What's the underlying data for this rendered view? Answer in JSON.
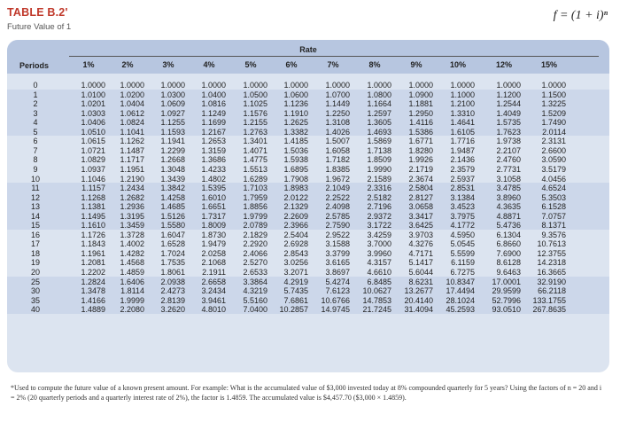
{
  "header": {
    "title": "TABLE B.2'",
    "subtitle": "Future Value of 1",
    "formula": "f = (1 + i)ⁿ"
  },
  "table": {
    "rate_label": "Rate",
    "periods_label": "Periods",
    "rates": [
      "1%",
      "2%",
      "3%",
      "4%",
      "5%",
      "6%",
      "7%",
      "8%",
      "9%",
      "10%",
      "12%",
      "15%"
    ],
    "rows": [
      {
        "p": "0",
        "v": [
          "1.0000",
          "1.0000",
          "1.0000",
          "1.0000",
          "1.0000",
          "1.0000",
          "1.0000",
          "1.0000",
          "1.0000",
          "1.0000",
          "1.0000",
          "1.0000"
        ]
      },
      {
        "p": "1",
        "v": [
          "1.0100",
          "1.0200",
          "1.0300",
          "1.0400",
          "1.0500",
          "1.0600",
          "1.0700",
          "1.0800",
          "1.0900",
          "1.1000",
          "1.1200",
          "1.1500"
        ]
      },
      {
        "p": "2",
        "v": [
          "1.0201",
          "1.0404",
          "1.0609",
          "1.0816",
          "1.1025",
          "1.1236",
          "1.1449",
          "1.1664",
          "1.1881",
          "1.2100",
          "1.2544",
          "1.3225"
        ]
      },
      {
        "p": "3",
        "v": [
          "1.0303",
          "1.0612",
          "1.0927",
          "1.1249",
          "1.1576",
          "1.1910",
          "1.2250",
          "1.2597",
          "1.2950",
          "1.3310",
          "1.4049",
          "1.5209"
        ]
      },
      {
        "p": "4",
        "v": [
          "1.0406",
          "1.0824",
          "1.1255",
          "1.1699",
          "1.2155",
          "1.2625",
          "1.3108",
          "1.3605",
          "1.4116",
          "1.4641",
          "1.5735",
          "1.7490"
        ]
      },
      {
        "p": "5",
        "v": [
          "1.0510",
          "1.1041",
          "1.1593",
          "1.2167",
          "1.2763",
          "1.3382",
          "1.4026",
          "1.4693",
          "1.5386",
          "1.6105",
          "1.7623",
          "2.0114"
        ]
      },
      {
        "p": "6",
        "v": [
          "1.0615",
          "1.1262",
          "1.1941",
          "1.2653",
          "1.3401",
          "1.4185",
          "1.5007",
          "1.5869",
          "1.6771",
          "1.7716",
          "1.9738",
          "2.3131"
        ]
      },
      {
        "p": "7",
        "v": [
          "1.0721",
          "1.1487",
          "1.2299",
          "1.3159",
          "1.4071",
          "1.5036",
          "1.6058",
          "1.7138",
          "1.8280",
          "1.9487",
          "2.2107",
          "2.6600"
        ]
      },
      {
        "p": "8",
        "v": [
          "1.0829",
          "1.1717",
          "1.2668",
          "1.3686",
          "1.4775",
          "1.5938",
          "1.7182",
          "1.8509",
          "1.9926",
          "2.1436",
          "2.4760",
          "3.0590"
        ]
      },
      {
        "p": "9",
        "v": [
          "1.0937",
          "1.1951",
          "1.3048",
          "1.4233",
          "1.5513",
          "1.6895",
          "1.8385",
          "1.9990",
          "2.1719",
          "2.3579",
          "2.7731",
          "3.5179"
        ]
      },
      {
        "p": "10",
        "v": [
          "1.1046",
          "1.2190",
          "1.3439",
          "1.4802",
          "1.6289",
          "1.7908",
          "1.9672",
          "2.1589",
          "2.3674",
          "2.5937",
          "3.1058",
          "4.0456"
        ]
      },
      {
        "p": "11",
        "v": [
          "1.1157",
          "1.2434",
          "1.3842",
          "1.5395",
          "1.7103",
          "1.8983",
          "2.1049",
          "2.3316",
          "2.5804",
          "2.8531",
          "3.4785",
          "4.6524"
        ]
      },
      {
        "p": "12",
        "v": [
          "1.1268",
          "1.2682",
          "1.4258",
          "1.6010",
          "1.7959",
          "2.0122",
          "2.2522",
          "2.5182",
          "2.8127",
          "3.1384",
          "3.8960",
          "5.3503"
        ]
      },
      {
        "p": "13",
        "v": [
          "1.1381",
          "1.2936",
          "1.4685",
          "1.6651",
          "1.8856",
          "2.1329",
          "2.4098",
          "2.7196",
          "3.0658",
          "3.4523",
          "4.3635",
          "6.1528"
        ]
      },
      {
        "p": "14",
        "v": [
          "1.1495",
          "1.3195",
          "1.5126",
          "1.7317",
          "1.9799",
          "2.2609",
          "2.5785",
          "2.9372",
          "3.3417",
          "3.7975",
          "4.8871",
          "7.0757"
        ]
      },
      {
        "p": "15",
        "v": [
          "1.1610",
          "1.3459",
          "1.5580",
          "1.8009",
          "2.0789",
          "2.3966",
          "2.7590",
          "3.1722",
          "3.6425",
          "4.1772",
          "5.4736",
          "8.1371"
        ]
      },
      {
        "p": "16",
        "v": [
          "1.1726",
          "1.3728",
          "1.6047",
          "1.8730",
          "2.1829",
          "2.5404",
          "2.9522",
          "3.4259",
          "3.9703",
          "4.5950",
          "6.1304",
          "9.3576"
        ]
      },
      {
        "p": "17",
        "v": [
          "1.1843",
          "1.4002",
          "1.6528",
          "1.9479",
          "2.2920",
          "2.6928",
          "3.1588",
          "3.7000",
          "4.3276",
          "5.0545",
          "6.8660",
          "10.7613"
        ]
      },
      {
        "p": "18",
        "v": [
          "1.1961",
          "1.4282",
          "1.7024",
          "2.0258",
          "2.4066",
          "2.8543",
          "3.3799",
          "3.9960",
          "4.7171",
          "5.5599",
          "7.6900",
          "12.3755"
        ]
      },
      {
        "p": "19",
        "v": [
          "1.2081",
          "1.4568",
          "1.7535",
          "2.1068",
          "2.5270",
          "3.0256",
          "3.6165",
          "4.3157",
          "5.1417",
          "6.1159",
          "8.6128",
          "14.2318"
        ]
      },
      {
        "p": "20",
        "v": [
          "1.2202",
          "1.4859",
          "1.8061",
          "2.1911",
          "2.6533",
          "3.2071",
          "3.8697",
          "4.6610",
          "5.6044",
          "6.7275",
          "9.6463",
          "16.3665"
        ]
      },
      {
        "p": "25",
        "v": [
          "1.2824",
          "1.6406",
          "2.0938",
          "2.6658",
          "3.3864",
          "4.2919",
          "5.4274",
          "6.8485",
          "8.6231",
          "10.8347",
          "17.0001",
          "32.9190"
        ]
      },
      {
        "p": "30",
        "v": [
          "1.3478",
          "1.8114",
          "2.4273",
          "3.2434",
          "4.3219",
          "5.7435",
          "7.6123",
          "10.0627",
          "13.2677",
          "17.4494",
          "29.9599",
          "66.2118"
        ]
      },
      {
        "p": "35",
        "v": [
          "1.4166",
          "1.9999",
          "2.8139",
          "3.9461",
          "5.5160",
          "7.6861",
          "10.6766",
          "14.7853",
          "20.4140",
          "28.1024",
          "52.7996",
          "133.1755"
        ]
      },
      {
        "p": "40",
        "v": [
          "1.4889",
          "2.2080",
          "3.2620",
          "4.8010",
          "7.0400",
          "10.2857",
          "14.9745",
          "21.7245",
          "31.4094",
          "45.2593",
          "93.0510",
          "267.8635"
        ]
      }
    ]
  },
  "footnote": "*Used to compute the future value of a known present amount. For example: What is the accumulated value of $3,000 invested today at 8% compounded quarterly for 5 years? Using the factors of n = 20 and i = 2% (20 quarterly periods and a quarterly interest rate of 2%), the factor is 1.4859. The accumulated value is $4,457.70 ($3,000 × 1.4859)."
}
